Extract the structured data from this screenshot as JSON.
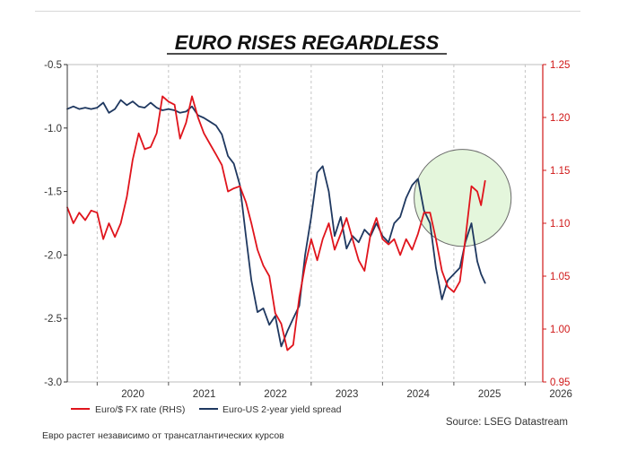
{
  "chart_data": {
    "type": "line",
    "title": "EURO RISES REGARDLESS",
    "xlabel": "",
    "ylabel": "",
    "x_ticks": [
      "2020",
      "2021",
      "2022",
      "2023",
      "2024",
      "2025",
      "2026"
    ],
    "xlim": [
      "2019-08-01",
      "2026-04-01"
    ],
    "left_axis": {
      "ticks": [
        "-0.5",
        "-1.0",
        "-1.5",
        "-2.0",
        "-2.5",
        "-3.0"
      ],
      "ylim": [
        -3.0,
        -0.5
      ],
      "color": "#333333"
    },
    "right_axis": {
      "ticks": [
        "1.25",
        "1.20",
        "1.15",
        "1.10",
        "1.05",
        "1.00",
        "0.95"
      ],
      "ylim": [
        0.95,
        1.25
      ],
      "color": "#d01818"
    },
    "grid": {
      "vertical": true,
      "horizontal": false,
      "style": "dashed"
    },
    "legend_position": "bottom",
    "series": [
      {
        "name": "Euro/$ FX rate (RHS)",
        "axis": "right",
        "color": "#e0141c",
        "points": [
          [
            "2019-08-01",
            1.115
          ],
          [
            "2019-09-01",
            1.1
          ],
          [
            "2019-10-01",
            1.11
          ],
          [
            "2019-11-01",
            1.103
          ],
          [
            "2019-12-01",
            1.112
          ],
          [
            "2020-01-01",
            1.11
          ],
          [
            "2020-02-01",
            1.085
          ],
          [
            "2020-03-01",
            1.1
          ],
          [
            "2020-04-01",
            1.087
          ],
          [
            "2020-05-01",
            1.1
          ],
          [
            "2020-06-01",
            1.125
          ],
          [
            "2020-07-01",
            1.16
          ],
          [
            "2020-08-01",
            1.185
          ],
          [
            "2020-09-01",
            1.17
          ],
          [
            "2020-10-01",
            1.172
          ],
          [
            "2020-11-01",
            1.185
          ],
          [
            "2020-12-01",
            1.22
          ],
          [
            "2021-01-01",
            1.215
          ],
          [
            "2021-02-01",
            1.212
          ],
          [
            "2021-03-01",
            1.18
          ],
          [
            "2021-04-01",
            1.195
          ],
          [
            "2021-05-01",
            1.22
          ],
          [
            "2021-06-01",
            1.2
          ],
          [
            "2021-07-01",
            1.185
          ],
          [
            "2021-08-01",
            1.175
          ],
          [
            "2021-09-01",
            1.165
          ],
          [
            "2021-10-01",
            1.155
          ],
          [
            "2021-11-01",
            1.13
          ],
          [
            "2021-12-01",
            1.133
          ],
          [
            "2022-01-01",
            1.135
          ],
          [
            "2022-02-01",
            1.12
          ],
          [
            "2022-03-01",
            1.1
          ],
          [
            "2022-04-01",
            1.075
          ],
          [
            "2022-05-01",
            1.06
          ],
          [
            "2022-06-01",
            1.05
          ],
          [
            "2022-07-01",
            1.015
          ],
          [
            "2022-08-01",
            1.005
          ],
          [
            "2022-09-01",
            0.98
          ],
          [
            "2022-10-01",
            0.985
          ],
          [
            "2022-11-01",
            1.03
          ],
          [
            "2022-12-01",
            1.06
          ],
          [
            "2023-01-01",
            1.085
          ],
          [
            "2023-02-01",
            1.065
          ],
          [
            "2023-03-01",
            1.085
          ],
          [
            "2023-04-01",
            1.1
          ],
          [
            "2023-05-01",
            1.075
          ],
          [
            "2023-06-01",
            1.09
          ],
          [
            "2023-07-01",
            1.105
          ],
          [
            "2023-08-01",
            1.085
          ],
          [
            "2023-09-01",
            1.065
          ],
          [
            "2023-10-01",
            1.055
          ],
          [
            "2023-11-01",
            1.09
          ],
          [
            "2023-12-01",
            1.105
          ],
          [
            "2024-01-01",
            1.085
          ],
          [
            "2024-02-01",
            1.08
          ],
          [
            "2024-03-01",
            1.085
          ],
          [
            "2024-04-01",
            1.07
          ],
          [
            "2024-05-01",
            1.085
          ],
          [
            "2024-06-01",
            1.075
          ],
          [
            "2024-07-01",
            1.09
          ],
          [
            "2024-08-01",
            1.11
          ],
          [
            "2024-09-01",
            1.11
          ],
          [
            "2024-10-01",
            1.085
          ],
          [
            "2024-11-01",
            1.055
          ],
          [
            "2024-12-01",
            1.04
          ],
          [
            "2025-01-01",
            1.035
          ],
          [
            "2025-02-01",
            1.045
          ],
          [
            "2025-03-01",
            1.085
          ],
          [
            "2025-04-01",
            1.135
          ],
          [
            "2025-05-01",
            1.13
          ],
          [
            "2025-05-20",
            1.117
          ],
          [
            "2025-06-10",
            1.14
          ]
        ]
      },
      {
        "name": "Euro-US 2-year yield spread",
        "axis": "left",
        "color": "#1f3860",
        "points": [
          [
            "2019-08-01",
            -0.85
          ],
          [
            "2019-09-01",
            -0.83
          ],
          [
            "2019-10-01",
            -0.85
          ],
          [
            "2019-11-01",
            -0.84
          ],
          [
            "2019-12-01",
            -0.85
          ],
          [
            "2020-01-01",
            -0.84
          ],
          [
            "2020-02-01",
            -0.8
          ],
          [
            "2020-03-01",
            -0.88
          ],
          [
            "2020-04-01",
            -0.85
          ],
          [
            "2020-05-01",
            -0.78
          ],
          [
            "2020-06-01",
            -0.82
          ],
          [
            "2020-07-01",
            -0.79
          ],
          [
            "2020-08-01",
            -0.83
          ],
          [
            "2020-09-01",
            -0.84
          ],
          [
            "2020-10-01",
            -0.8
          ],
          [
            "2020-11-01",
            -0.84
          ],
          [
            "2020-12-01",
            -0.86
          ],
          [
            "2021-01-01",
            -0.85
          ],
          [
            "2021-02-01",
            -0.86
          ],
          [
            "2021-03-01",
            -0.88
          ],
          [
            "2021-04-01",
            -0.87
          ],
          [
            "2021-05-01",
            -0.83
          ],
          [
            "2021-06-01",
            -0.9
          ],
          [
            "2021-07-01",
            -0.92
          ],
          [
            "2021-08-01",
            -0.95
          ],
          [
            "2021-09-01",
            -0.98
          ],
          [
            "2021-10-01",
            -1.05
          ],
          [
            "2021-11-01",
            -1.22
          ],
          [
            "2021-12-01",
            -1.28
          ],
          [
            "2022-01-01",
            -1.45
          ],
          [
            "2022-02-01",
            -1.85
          ],
          [
            "2022-03-01",
            -2.2
          ],
          [
            "2022-04-01",
            -2.45
          ],
          [
            "2022-05-01",
            -2.42
          ],
          [
            "2022-06-01",
            -2.55
          ],
          [
            "2022-07-01",
            -2.48
          ],
          [
            "2022-08-01",
            -2.72
          ],
          [
            "2022-09-01",
            -2.6
          ],
          [
            "2022-10-01",
            -2.5
          ],
          [
            "2022-11-01",
            -2.4
          ],
          [
            "2022-12-01",
            -2.0
          ],
          [
            "2023-01-01",
            -1.7
          ],
          [
            "2023-02-01",
            -1.35
          ],
          [
            "2023-03-01",
            -1.3
          ],
          [
            "2023-04-01",
            -1.5
          ],
          [
            "2023-05-01",
            -1.85
          ],
          [
            "2023-06-01",
            -1.7
          ],
          [
            "2023-07-01",
            -1.95
          ],
          [
            "2023-08-01",
            -1.85
          ],
          [
            "2023-09-01",
            -1.9
          ],
          [
            "2023-10-01",
            -1.8
          ],
          [
            "2023-11-01",
            -1.85
          ],
          [
            "2023-12-01",
            -1.75
          ],
          [
            "2024-01-01",
            -1.85
          ],
          [
            "2024-02-01",
            -1.9
          ],
          [
            "2024-03-01",
            -1.75
          ],
          [
            "2024-04-01",
            -1.7
          ],
          [
            "2024-05-01",
            -1.55
          ],
          [
            "2024-06-01",
            -1.45
          ],
          [
            "2024-07-01",
            -1.4
          ],
          [
            "2024-08-01",
            -1.65
          ],
          [
            "2024-09-01",
            -1.75
          ],
          [
            "2024-10-01",
            -2.1
          ],
          [
            "2024-11-01",
            -2.35
          ],
          [
            "2024-12-01",
            -2.2
          ],
          [
            "2025-01-01",
            -2.15
          ],
          [
            "2025-02-01",
            -2.1
          ],
          [
            "2025-03-01",
            -1.9
          ],
          [
            "2025-04-01",
            -1.75
          ],
          [
            "2025-05-01",
            -2.05
          ],
          [
            "2025-05-20",
            -2.15
          ],
          [
            "2025-06-10",
            -2.22
          ]
        ]
      }
    ],
    "annotation": {
      "shape": "circle",
      "fill": "#e4f6dc",
      "stroke": "#6a6a6a",
      "center": [
        "2025-02-15",
        -1.55
      ],
      "radius_years": 0.68
    },
    "source": "Source: LSEG Datastream"
  },
  "caption": "Евро растет независимо от трансатлантических курсов"
}
